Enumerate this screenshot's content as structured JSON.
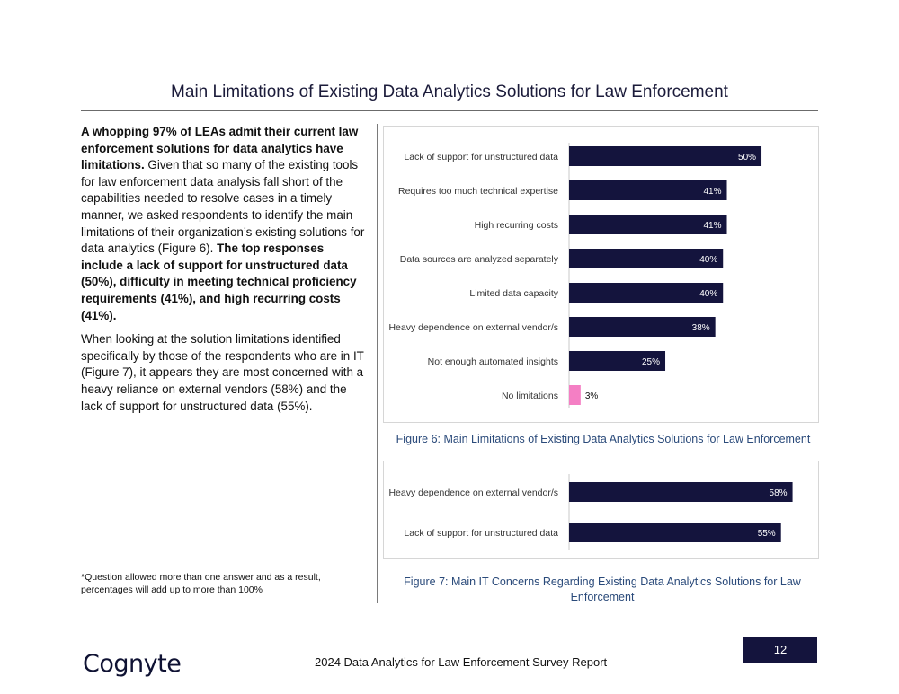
{
  "title": "Main Limitations of Existing Data Analytics Solutions for Law Enforcement",
  "body": {
    "p1_bold_a": "A whopping 97% of LEAs admit their current law enforcement solutions for data analytics have limitations.",
    "p1_text": " Given that so many of the existing tools for law enforcement data analysis fall short of the capabilities needed to resolve cases in a timely manner, we asked respondents to identify the main limitations of their organization’s existing solutions for data analytics (Figure 6). ",
    "p1_bold_b": "The top responses include a lack of support for unstructured data (50%), difficulty in meeting technical proficiency requirements (41%), and high recurring costs (41%).",
    "p2": "When looking at the solution limitations identified specifically by those of the respondents who are in IT (Figure 7), it appears they are most concerned with a heavy reliance on external vendors (58%) and the lack of support for unstructured data (55%)."
  },
  "footnote": "*Question allowed more than one answer and as a result, percentages will add up to more than 100%",
  "colors": {
    "bar": "#14143d",
    "highlight": "#f47fc4",
    "caption": "#2a4a7a"
  },
  "chart_data": [
    {
      "type": "bar",
      "orientation": "horizontal",
      "categories": [
        "Lack of support for unstructured data",
        "Requires too much technical expertise",
        "High recurring costs",
        "Data sources are analyzed separately",
        "Limited data capacity",
        "Heavy dependence on external vendor/s",
        "Not enough automated insights",
        "No limitations"
      ],
      "values": [
        50,
        41,
        41,
        40,
        40,
        38,
        25,
        3
      ],
      "value_labels": [
        "50%",
        "41%",
        "41%",
        "40%",
        "40%",
        "38%",
        "25%",
        "3%"
      ],
      "highlight_index": 7,
      "xlim": [
        0,
        57
      ],
      "caption": "Figure 6: Main Limitations of Existing Data Analytics Solutions for Law Enforcement"
    },
    {
      "type": "bar",
      "orientation": "horizontal",
      "categories": [
        "Heavy dependence on external vendor/s",
        "Lack of support for unstructured data"
      ],
      "values": [
        58,
        55
      ],
      "value_labels": [
        "58%",
        "55%"
      ],
      "xlim": [
        0,
        63
      ],
      "caption": "Figure 7: Main IT Concerns Regarding Existing Data Analytics Solutions for Law Enforcement"
    }
  ],
  "footer": {
    "page_number": "12",
    "logo_text": "Cognyte",
    "report_name": "2024 Data Analytics for Law Enforcement Survey Report"
  }
}
